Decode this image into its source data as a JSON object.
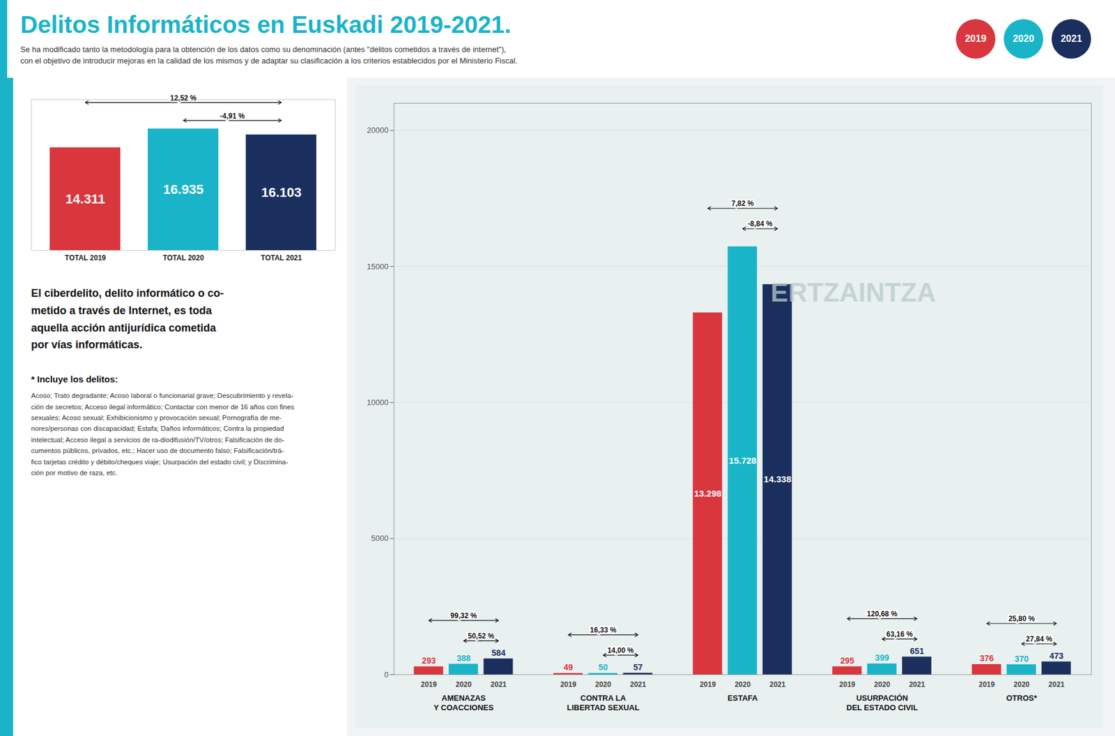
{
  "chart_data": [
    {
      "type": "bar",
      "title": "Delitos Informáticos en Euskadi 2019-2021.",
      "subtitle": "Se ha modificado tanto la metodología para la obtención de los datos como su denominación (antes \"delitos cometidos a través de internet\"),\ncon el objetivo de introducir mejoras en la calidad de los mismos y de adaptar su clasificación a los criterios establecidos por el Ministerio Fiscal.",
      "categories": [
        "AMENAZAS\nY COACCIONES",
        "CONTRA LA\nLIBERTAD SEXUAL",
        "ESTAFA",
        "USURPACIÓN\nDEL ESTADO CIVIL",
        "OTROS*"
      ],
      "series": [
        {
          "name": "2019",
          "color": "#d9363e",
          "values": [
            293,
            49,
            13298,
            295,
            376
          ],
          "value_labels": [
            "293",
            "49",
            "13.298",
            "295",
            "376"
          ]
        },
        {
          "name": "2020",
          "color": "#1ab4c8",
          "values": [
            388,
            50,
            15728,
            399,
            370
          ],
          "value_labels": [
            "388",
            "50",
            "15.728",
            "399",
            "370"
          ]
        },
        {
          "name": "2021",
          "color": "#1b2f5e",
          "values": [
            584,
            57,
            14338,
            651,
            473
          ],
          "value_labels": [
            "584",
            "57",
            "14.338",
            "651",
            "473"
          ]
        }
      ],
      "changes": [
        {
          "from": "2019",
          "to": "2021",
          "labels": [
            "99,32 %",
            "16,33 %",
            "7,82 %",
            "120,68 %",
            "25,80 %"
          ]
        },
        {
          "from": "2020",
          "to": "2021",
          "labels": [
            "50,52 %",
            "14,00 %",
            "-8,84 %",
            "63,16 %",
            "27,84 %"
          ]
        }
      ],
      "annotations": [
        "ERTZAINTZA"
      ],
      "ylim": [
        0,
        21000
      ],
      "yticks": [
        0,
        5000,
        10000,
        15000,
        20000
      ],
      "grid": true,
      "data_labels": true,
      "legend": "top right"
    },
    {
      "type": "bar",
      "categories": [
        "TOTAL 2019",
        "TOTAL 2020",
        "TOTAL 2021"
      ],
      "values": [
        14311,
        16935,
        16103
      ],
      "value_labels": [
        "14.311",
        "16.935",
        "16.103"
      ],
      "colors": [
        "#d9363e",
        "#1ab4c8",
        "#1b2f5e"
      ],
      "changes": [
        {
          "from": "TOTAL 2019",
          "to": "TOTAL 2021",
          "label": "12,52 %"
        },
        {
          "from": "TOTAL 2020",
          "to": "TOTAL 2021",
          "label": "-4,91 %"
        }
      ],
      "ylim": [
        0,
        21000
      ],
      "tick_labels": "x",
      "data_labels": true,
      "text": "El ciberdelito, delito informático o co-\nmetido a través de Internet, es toda\naquella acción antijurídica cometida\npor vías informáticas.",
      "footnote": {
        "title": "* Incluye los delitos:",
        "lines": [
          "Acoso; Trato degradante; Acoso laboral o funcionarial grave; Descubrimiento y revela-",
          "ción de secretos; Acceso ilegal informático; Contactar con menor de 16 años con fines",
          "sexuales; Acoso sexual; Exhibicionismo y provocación sexual; Pornografía de me-",
          "nores/personas con discapacidad; Estafa; Daños informáticos; Contra la propiedad",
          "intelectual; Acceso ilegal a servicios de ra-diodifusión/TV/otros; Falsificación de do-",
          "cumentos públicos, privados, etc.; Hacer uso de documento falso; Falsificación/trá-",
          "fico tarjetas crédito y débito/cheques viaje; Usurpación del estado civil; y Discrimina-",
          "ción por motivo de raza, etc."
        ]
      }
    }
  ]
}
